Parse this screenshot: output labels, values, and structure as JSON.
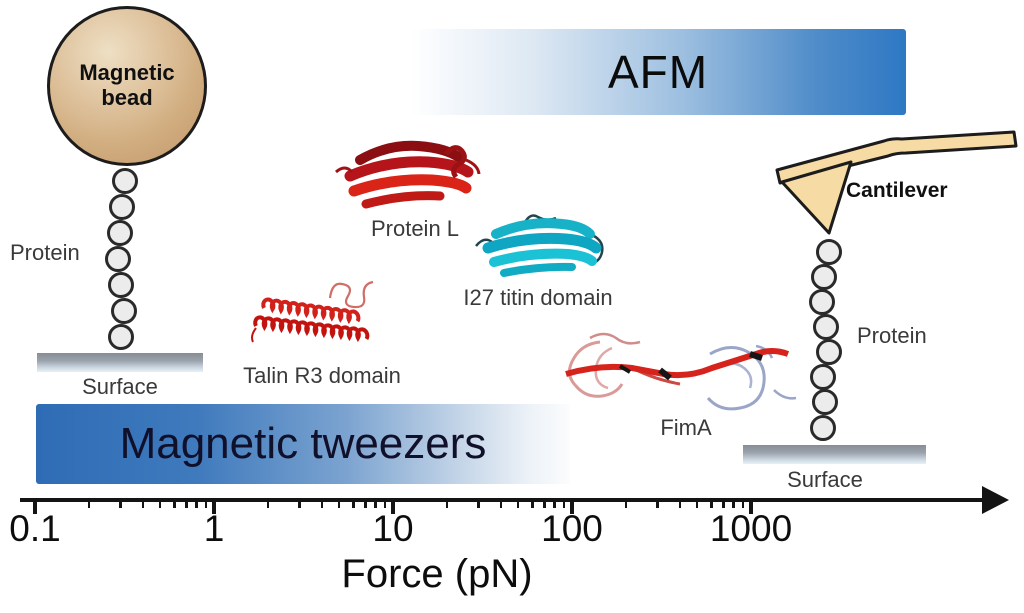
{
  "axis": {
    "label": "Force (pN)",
    "scale": "log",
    "major_ticks": [
      {
        "value": 0.1,
        "label": "0.1"
      },
      {
        "value": 1,
        "label": "1"
      },
      {
        "value": 10,
        "label": "10"
      },
      {
        "value": 100,
        "label": "100"
      },
      {
        "value": 1000,
        "label": "1000"
      }
    ],
    "minor_tick_multipliers": [
      2,
      3,
      4,
      5,
      6,
      7,
      8,
      9
    ]
  },
  "technique_bars": {
    "magnetic_tweezers": {
      "label": "Magnetic tweezers",
      "force_range_pN": [
        0.1,
        100
      ]
    },
    "afm": {
      "label": "AFM",
      "force_range_pN": [
        10,
        7000
      ]
    }
  },
  "magnetic_tweezers_setup": {
    "bead_label": "Magnetic bead",
    "protein_label": "Protein",
    "surface_label": "Surface"
  },
  "afm_setup": {
    "cantilever_label": "Cantilever",
    "protein_label": "Protein",
    "surface_label": "Surface"
  },
  "proteins": [
    {
      "label": "Protein L",
      "color": "#b5151a"
    },
    {
      "label": "Talin R3 domain",
      "color": "#d2201a"
    },
    {
      "label": "I27 titin domain",
      "color": "#14b0c7"
    },
    {
      "label": "FimA",
      "color": "#d6231c"
    }
  ],
  "colors": {
    "bar_blue_left": "#2e6cb5",
    "bar_blue_right": "#2e78c4",
    "bead_tan": "#d0ac7e",
    "cantilever_tan": "#f6dba4",
    "surface_gray": "#878d95",
    "label_gray": "#3a3a3a",
    "axis_black": "#141414"
  }
}
